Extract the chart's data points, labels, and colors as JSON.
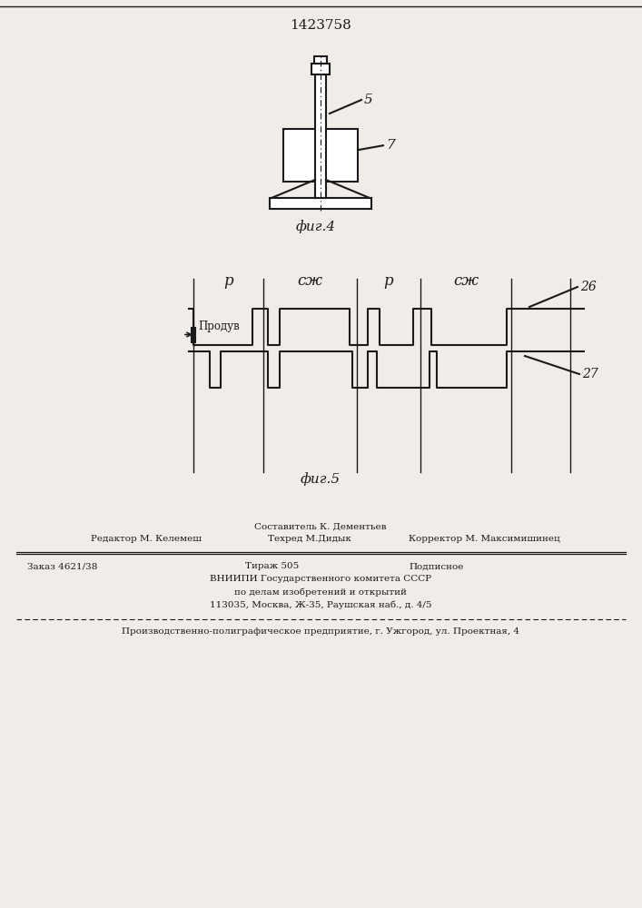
{
  "patent_number": "1423758",
  "fig4_label": "фиг.4",
  "fig5_label": "фиг.5",
  "label_5": "5",
  "label_7": "7",
  "label_26": "26",
  "label_27": "27",
  "label_produv": "Продув",
  "phase_labels": [
    "р",
    "сж",
    "р",
    "сж"
  ],
  "footer_line1": "Составитель К. Дементьев",
  "footer_line2_left": "Редактор М. Келемеш",
  "footer_line2_mid": "Техред М.Дидык",
  "footer_line2_right": "Корректор М. Максимишинец",
  "footer_line3_left": "Заказ 4621/38",
  "footer_line3_mid": "Тираж 505",
  "footer_line3_right": "Подписное",
  "footer_line4": "ВНИИПИ Государственного комитета СССР",
  "footer_line5": "по делам изобретений и открытий",
  "footer_line6": "113035, Москва, Ж-35, Раушская наб., д. 4/5",
  "footer_line7": "Производственно-полиграфическое предприятие, г. Ужгород, ул. Проектная, 4",
  "bg_color": "#f0ede8",
  "line_color": "#1a1a1a"
}
